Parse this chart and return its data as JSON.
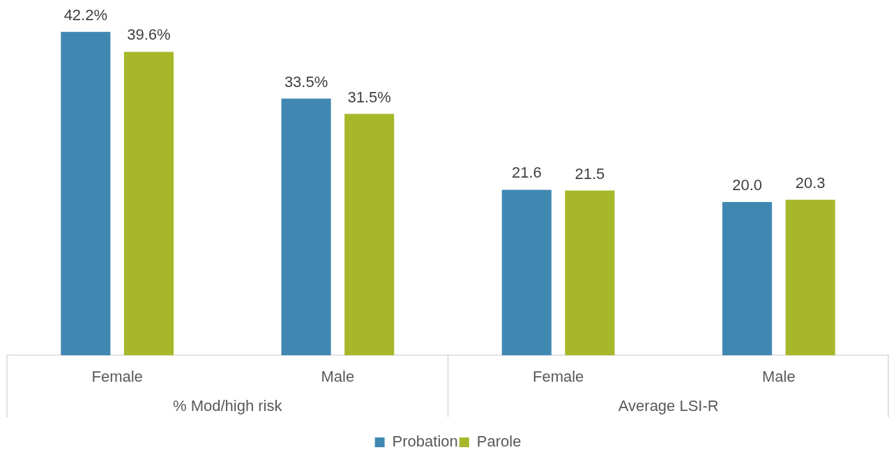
{
  "chart_data": {
    "type": "bar",
    "categories": [
      "Female",
      "Male",
      "Female",
      "Male"
    ],
    "annotations": [
      "% Mod/high risk",
      "Average LSI-R"
    ],
    "series": [
      {
        "name": "Probation",
        "color": "#4088b2",
        "values": [
          42.2,
          33.5,
          21.6,
          20.0
        ],
        "value_labels": [
          "42.2%",
          "33.5%",
          "21.6",
          "20.0"
        ]
      },
      {
        "name": "Parole",
        "color": "#a7b72a",
        "values": [
          39.6,
          31.5,
          21.5,
          20.3
        ],
        "value_labels": [
          "39.6%",
          "31.5%",
          "21.5",
          "20.3"
        ]
      }
    ],
    "tick_labels": "x",
    "legend": "bottom"
  }
}
